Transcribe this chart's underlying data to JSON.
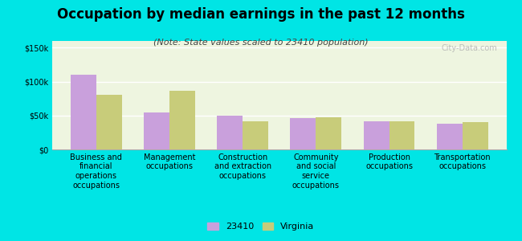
{
  "title": "Occupation by median earnings in the past 12 months",
  "subtitle": "(Note: State values scaled to 23410 population)",
  "categories": [
    "Business and\nfinancial\noperations\noccupations",
    "Management\noccupations",
    "Construction\nand extraction\noccupations",
    "Community\nand social\nservice\noccupations",
    "Production\noccupations",
    "Transportation\noccupations"
  ],
  "values_23410": [
    110000,
    55000,
    50000,
    46000,
    42000,
    38000
  ],
  "values_virginia": [
    80000,
    87000,
    42000,
    47000,
    42000,
    40000
  ],
  "color_23410": "#c9a0dc",
  "color_virginia": "#c8cc7a",
  "legend_labels": [
    "23410",
    "Virginia"
  ],
  "ylim": [
    0,
    160000
  ],
  "yticks": [
    0,
    50000,
    100000,
    150000
  ],
  "ytick_labels": [
    "$0",
    "$50k",
    "$100k",
    "$150k"
  ],
  "background_color": "#00e5e5",
  "plot_bg_color": "#eef5e0",
  "watermark": "City-Data.com",
  "bar_width": 0.35,
  "title_fontsize": 12,
  "subtitle_fontsize": 8,
  "tick_fontsize": 7,
  "legend_fontsize": 8
}
